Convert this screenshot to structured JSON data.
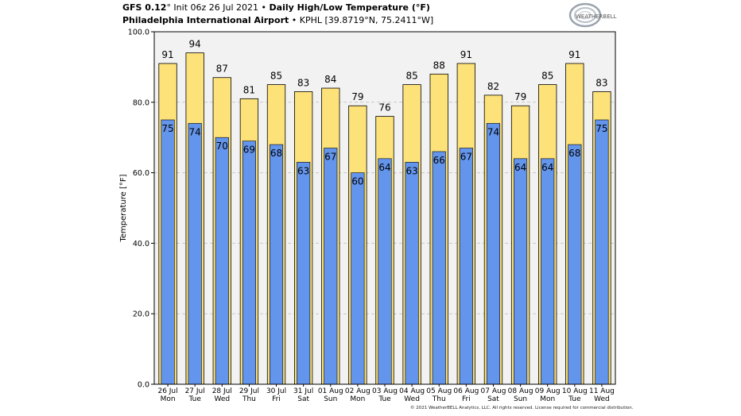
{
  "header": {
    "line1_model": "GFS 0.12",
    "line1_init": "° Init 06z 26 Jul 2021 • ",
    "line1_title": "Daily High/Low Temperature (°F)",
    "line2_station": "Philadelphia International Airport",
    "line2_coords": " • KPHL [39.8719°N, 75.2411°W]"
  },
  "logo": {
    "text": "WEATHERBELL"
  },
  "copyright": "© 2021 WeatherBELL Analytics, LLC. All rights reserved. License required for commercial distribution.",
  "colors": {
    "high": "#fde27a",
    "low": "#6495ed",
    "bg": "#f2f2f2"
  },
  "chart_data": {
    "type": "bar",
    "title": "Daily High/Low Temperature (°F)",
    "ylabel": "Temperature [°F]",
    "xlabel": "",
    "ylim": [
      0,
      100
    ],
    "yticks": [
      "0.0",
      "20.0",
      "40.0",
      "60.0",
      "80.0",
      "100.0"
    ],
    "categories": [
      "26 Jul",
      "27 Jul",
      "28 Jul",
      "29 Jul",
      "30 Jul",
      "31 Jul",
      "01 Aug",
      "02 Aug",
      "03 Aug",
      "04 Aug",
      "05 Aug",
      "06 Aug",
      "07 Aug",
      "08 Aug",
      "09 Aug",
      "10 Aug",
      "11 Aug"
    ],
    "weekdays": [
      "Mon",
      "Tue",
      "Wed",
      "Thu",
      "Fri",
      "Sat",
      "Sun",
      "Mon",
      "Tue",
      "Wed",
      "Thu",
      "Fri",
      "Sat",
      "Sun",
      "Mon",
      "Tue",
      "Wed"
    ],
    "series": [
      {
        "name": "High",
        "values": [
          91,
          94,
          87,
          81,
          85,
          83,
          84,
          79,
          76,
          85,
          88,
          91,
          82,
          79,
          85,
          91,
          83
        ]
      },
      {
        "name": "Low",
        "values": [
          75,
          74,
          70,
          69,
          68,
          63,
          67,
          60,
          64,
          63,
          66,
          67,
          74,
          64,
          64,
          68,
          75
        ]
      }
    ]
  }
}
